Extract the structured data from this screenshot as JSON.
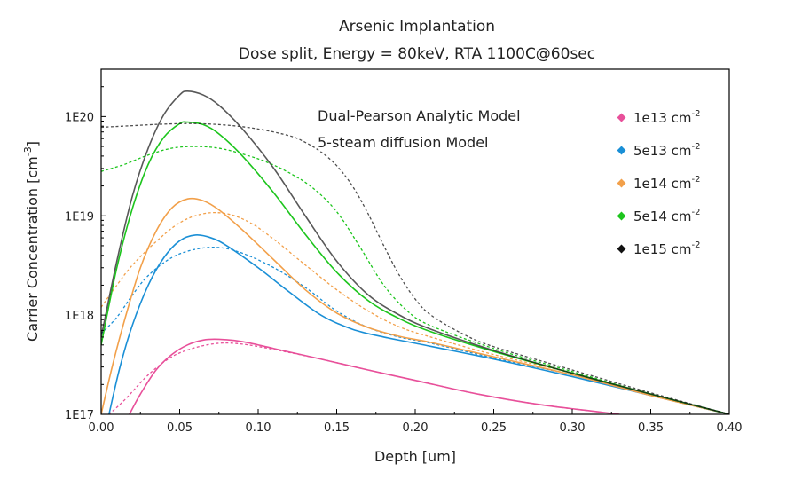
{
  "chart_data": {
    "type": "line",
    "title": "Arsenic Implantation",
    "subtitle": "Dose split, Energy = 80keV, RTA 1100C@60sec",
    "xlabel": "Depth [um]",
    "ylabel_main": "Carrier Concentration [cm",
    "ylabel_sup": "-3",
    "ylabel_close": "]",
    "xlim": [
      0.0,
      0.4
    ],
    "ylim": [
      1e+17,
      3e+20
    ],
    "yscale": "log",
    "x_ticks": [
      "0.00",
      "0.05",
      "0.10",
      "0.15",
      "0.20",
      "0.25",
      "0.30",
      "0.35",
      "0.40"
    ],
    "x_tick_values": [
      0.0,
      0.05,
      0.1,
      0.15,
      0.2,
      0.25,
      0.3,
      0.35,
      0.4
    ],
    "y_ticks": [
      "1E17",
      "1E18",
      "1E19",
      "1E20"
    ],
    "y_tick_values": [
      1e+17,
      1e+18,
      1e+19,
      1e+20
    ],
    "annotations": [
      "Dual-Pearson Analytic Model",
      "5-steam diffusion Model"
    ],
    "legend_position": "right",
    "series": [
      {
        "name": "1e13 cm",
        "sup": "-2",
        "color": "#e8509a",
        "solid": [
          [
            0.018,
            1e+17
          ],
          [
            0.025,
            1.6e+17
          ],
          [
            0.035,
            2.8e+17
          ],
          [
            0.045,
            4e+17
          ],
          [
            0.055,
            5e+17
          ],
          [
            0.065,
            5.6e+17
          ],
          [
            0.075,
            5.7e+17
          ],
          [
            0.09,
            5.4e+17
          ],
          [
            0.11,
            4.6e+17
          ],
          [
            0.14,
            3.6e+17
          ],
          [
            0.17,
            2.8e+17
          ],
          [
            0.2,
            2.2e+17
          ],
          [
            0.24,
            1.6e+17
          ],
          [
            0.28,
            1.25e+17
          ],
          [
            0.33,
            1e+17
          ]
        ],
        "dashed": [
          [
            0.005,
            1e+17
          ],
          [
            0.015,
            1.4e+17
          ],
          [
            0.03,
            2.5e+17
          ],
          [
            0.045,
            3.8e+17
          ],
          [
            0.06,
            4.7e+17
          ],
          [
            0.075,
            5.2e+17
          ],
          [
            0.09,
            5.1e+17
          ],
          [
            0.11,
            4.5e+17
          ],
          [
            0.14,
            3.6e+17
          ],
          [
            0.17,
            2.8e+17
          ],
          [
            0.2,
            2.2e+17
          ],
          [
            0.24,
            1.6e+17
          ],
          [
            0.28,
            1.25e+17
          ],
          [
            0.33,
            1e+17
          ]
        ]
      },
      {
        "name": "5e13 cm",
        "sup": "-2",
        "color": "#1a8fd6",
        "solid": [
          [
            0.005,
            1e+17
          ],
          [
            0.012,
            3e+17
          ],
          [
            0.02,
            8e+17
          ],
          [
            0.03,
            2e+18
          ],
          [
            0.04,
            3.8e+18
          ],
          [
            0.05,
            5.6e+18
          ],
          [
            0.06,
            6.4e+18
          ],
          [
            0.07,
            6e+18
          ],
          [
            0.08,
            5e+18
          ],
          [
            0.1,
            3e+18
          ],
          [
            0.12,
            1.7e+18
          ],
          [
            0.14,
            1e+18
          ],
          [
            0.16,
            7.2e+17
          ],
          [
            0.18,
            6e+17
          ],
          [
            0.2,
            5.2e+17
          ],
          [
            0.25,
            3.6e+17
          ],
          [
            0.3,
            2.4e+17
          ],
          [
            0.35,
            1.55e+17
          ],
          [
            0.4,
            1e+17
          ]
        ],
        "dashed": [
          [
            0.0,
            6.5e+17
          ],
          [
            0.01,
            9.5e+17
          ],
          [
            0.02,
            1.6e+18
          ],
          [
            0.03,
            2.5e+18
          ],
          [
            0.045,
            3.8e+18
          ],
          [
            0.06,
            4.6e+18
          ],
          [
            0.075,
            4.8e+18
          ],
          [
            0.09,
            4.2e+18
          ],
          [
            0.11,
            3e+18
          ],
          [
            0.13,
            1.9e+18
          ],
          [
            0.15,
            1.1e+18
          ],
          [
            0.17,
            7.5e+17
          ],
          [
            0.19,
            6e+17
          ],
          [
            0.21,
            5.2e+17
          ],
          [
            0.25,
            3.7e+17
          ],
          [
            0.3,
            2.5e+17
          ],
          [
            0.35,
            1.6e+17
          ],
          [
            0.4,
            1e+17
          ]
        ]
      },
      {
        "name": "1e14 cm",
        "sup": "-2",
        "color": "#f2a04a",
        "solid": [
          [
            0.0,
            1e+17
          ],
          [
            0.007,
            3e+17
          ],
          [
            0.015,
            9e+17
          ],
          [
            0.025,
            3e+18
          ],
          [
            0.035,
            7e+18
          ],
          [
            0.045,
            1.2e+19
          ],
          [
            0.055,
            1.48e+19
          ],
          [
            0.065,
            1.42e+19
          ],
          [
            0.075,
            1.15e+19
          ],
          [
            0.09,
            7.2e+18
          ],
          [
            0.11,
            3.6e+18
          ],
          [
            0.13,
            1.8e+18
          ],
          [
            0.15,
            1.05e+18
          ],
          [
            0.17,
            7.5e+17
          ],
          [
            0.19,
            6.1e+17
          ],
          [
            0.21,
            5.3e+17
          ],
          [
            0.25,
            3.8e+17
          ],
          [
            0.3,
            2.5e+17
          ],
          [
            0.35,
            1.55e+17
          ],
          [
            0.4,
            1e+17
          ]
        ],
        "dashed": [
          [
            0.0,
            1.2e+18
          ],
          [
            0.01,
            2e+18
          ],
          [
            0.02,
            3.2e+18
          ],
          [
            0.035,
            5.5e+18
          ],
          [
            0.05,
            8.5e+18
          ],
          [
            0.065,
            1.05e+19
          ],
          [
            0.08,
            1.05e+19
          ],
          [
            0.095,
            8.5e+18
          ],
          [
            0.11,
            5.8e+18
          ],
          [
            0.13,
            3.2e+18
          ],
          [
            0.15,
            1.8e+18
          ],
          [
            0.17,
            1.1e+18
          ],
          [
            0.19,
            7.6e+17
          ],
          [
            0.21,
            6e+17
          ],
          [
            0.25,
            4e+17
          ],
          [
            0.3,
            2.6e+17
          ],
          [
            0.35,
            1.6e+17
          ],
          [
            0.4,
            1e+17
          ]
        ]
      },
      {
        "name": "5e14 cm",
        "sup": "-2",
        "color": "#1dc51d",
        "solid": [
          [
            0.0,
            5e+17
          ],
          [
            0.01,
            3e+18
          ],
          [
            0.02,
            1.2e+19
          ],
          [
            0.03,
            3.3e+19
          ],
          [
            0.04,
            6.2e+19
          ],
          [
            0.05,
            8.5e+19
          ],
          [
            0.055,
            8.8e+19
          ],
          [
            0.065,
            8.3e+19
          ],
          [
            0.075,
            6.7e+19
          ],
          [
            0.09,
            4e+19
          ],
          [
            0.11,
            1.7e+19
          ],
          [
            0.13,
            6.5e+18
          ],
          [
            0.15,
            2.7e+18
          ],
          [
            0.17,
            1.4e+18
          ],
          [
            0.19,
            9.2e+17
          ],
          [
            0.21,
            6.8e+17
          ],
          [
            0.25,
            4.3e+17
          ],
          [
            0.3,
            2.6e+17
          ],
          [
            0.35,
            1.6e+17
          ],
          [
            0.4,
            1e+17
          ]
        ],
        "dashed": [
          [
            0.0,
            2.8e+19
          ],
          [
            0.015,
            3.3e+19
          ],
          [
            0.03,
            4.1e+19
          ],
          [
            0.045,
            4.8e+19
          ],
          [
            0.06,
            5e+19
          ],
          [
            0.075,
            4.8e+19
          ],
          [
            0.09,
            4.2e+19
          ],
          [
            0.105,
            3.5e+19
          ],
          [
            0.12,
            2.7e+19
          ],
          [
            0.135,
            1.9e+19
          ],
          [
            0.15,
            1.1e+19
          ],
          [
            0.165,
            4.8e+18
          ],
          [
            0.18,
            2e+18
          ],
          [
            0.195,
            1.1e+18
          ],
          [
            0.21,
            7.8e+17
          ],
          [
            0.25,
            4.6e+17
          ],
          [
            0.3,
            2.7e+17
          ],
          [
            0.35,
            1.6e+17
          ],
          [
            0.4,
            1e+17
          ]
        ]
      },
      {
        "name": "1e15 cm",
        "sup": "-2",
        "color": "#111111",
        "solid": [
          [
            0.0,
            6e+17
          ],
          [
            0.01,
            3.5e+18
          ],
          [
            0.02,
            1.6e+19
          ],
          [
            0.03,
            4.8e+19
          ],
          [
            0.04,
            1.05e+20
          ],
          [
            0.05,
            1.65e+20
          ],
          [
            0.055,
            1.8e+20
          ],
          [
            0.065,
            1.65e+20
          ],
          [
            0.075,
            1.3e+20
          ],
          [
            0.09,
            7.5e+19
          ],
          [
            0.11,
            3e+19
          ],
          [
            0.13,
            1e+19
          ],
          [
            0.15,
            3.5e+18
          ],
          [
            0.17,
            1.6e+18
          ],
          [
            0.19,
            1e+18
          ],
          [
            0.21,
            7.2e+17
          ],
          [
            0.25,
            4.4e+17
          ],
          [
            0.3,
            2.6e+17
          ],
          [
            0.35,
            1.6e+17
          ],
          [
            0.4,
            1e+17
          ]
        ],
        "dashed": [
          [
            0.0,
            7.8e+19
          ],
          [
            0.02,
            8.1e+19
          ],
          [
            0.04,
            8.4e+19
          ],
          [
            0.06,
            8.5e+19
          ],
          [
            0.08,
            8.2e+19
          ],
          [
            0.1,
            7.5e+19
          ],
          [
            0.12,
            6.4e+19
          ],
          [
            0.13,
            5.5e+19
          ],
          [
            0.14,
            4.4e+19
          ],
          [
            0.15,
            3.2e+19
          ],
          [
            0.16,
            2e+19
          ],
          [
            0.17,
            1.05e+19
          ],
          [
            0.18,
            5e+18
          ],
          [
            0.19,
            2.5e+18
          ],
          [
            0.2,
            1.45e+18
          ],
          [
            0.21,
            1e+18
          ],
          [
            0.23,
            6.5e+17
          ],
          [
            0.25,
            4.8e+17
          ],
          [
            0.3,
            2.8e+17
          ],
          [
            0.35,
            1.65e+17
          ],
          [
            0.4,
            1e+17
          ]
        ]
      }
    ]
  }
}
